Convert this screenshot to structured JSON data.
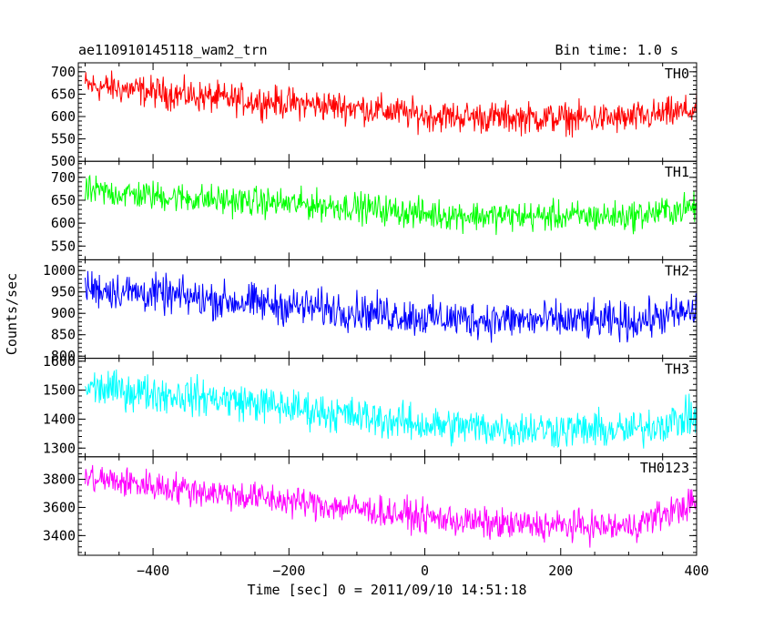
{
  "chart_data": {
    "type": "line",
    "title": "ae110910145118_wam2_trn",
    "bin_time_label": "Bin time: 1.0 s",
    "xlabel": "Time [sec] 0 = 2011/09/10 14:51:18",
    "ylabel": "Counts/sec",
    "xlim": [
      -510,
      400
    ],
    "xticks": [
      -400,
      -200,
      0,
      200,
      400
    ],
    "xtick_labels": [
      "−400",
      "−200",
      "0",
      "200",
      "400"
    ],
    "bin_seconds": 1.0,
    "x_start": -500,
    "x_end": 400,
    "grid": false,
    "legend": "panel labels at top-right of each panel",
    "series": [
      {
        "name": "TH0",
        "color": "#ff0000",
        "ylim": [
          500,
          720
        ],
        "yticks": [
          550,
          600,
          650,
          700
        ],
        "ytick_labels": [
          "550",
          "600",
          "650",
          "700"
        ],
        "extra_ytick_labels": [
          "500"
        ],
        "trend_x": [
          -500,
          -300,
          -100,
          0,
          100,
          300,
          400
        ],
        "trend_y": [
          670,
          640,
          620,
          602,
          598,
          595,
          615
        ],
        "noise_amplitude": 30
      },
      {
        "name": "TH1",
        "color": "#00ff00",
        "ylim": [
          520,
          735
        ],
        "yticks": [
          550,
          600,
          650,
          700
        ],
        "ytick_labels": [
          "550",
          "600",
          "650",
          "700"
        ],
        "trend_x": [
          -500,
          -300,
          -100,
          0,
          100,
          300,
          400
        ],
        "trend_y": [
          670,
          650,
          635,
          620,
          615,
          615,
          635
        ],
        "noise_amplitude": 28
      },
      {
        "name": "TH2",
        "color": "#0000ff",
        "ylim": [
          795,
          1025
        ],
        "yticks": [
          800,
          850,
          900,
          950,
          1000
        ],
        "ytick_labels": [
          "800",
          "850",
          "900",
          "950",
          "1000"
        ],
        "trend_x": [
          -500,
          -300,
          -100,
          0,
          100,
          300,
          400
        ],
        "trend_y": [
          960,
          930,
          905,
          890,
          885,
          880,
          905
        ],
        "noise_amplitude": 38
      },
      {
        "name": "TH3",
        "color": "#00ffff",
        "ylim": [
          1270,
          1610
        ],
        "yticks": [
          1300,
          1400,
          1500,
          1600
        ],
        "ytick_labels": [
          "1300",
          "1400",
          "1500",
          "1600"
        ],
        "trend_x": [
          -500,
          -300,
          -100,
          0,
          100,
          300,
          400
        ],
        "trend_y": [
          1510,
          1470,
          1410,
          1380,
          1370,
          1360,
          1410
        ],
        "noise_amplitude": 55
      },
      {
        "name": "TH0123",
        "color": "#ff00ff",
        "ylim": [
          3260,
          3960
        ],
        "yticks": [
          3400,
          3600,
          3800
        ],
        "ytick_labels": [
          "3400",
          "3600",
          "3800"
        ],
        "trend_x": [
          -500,
          -300,
          -100,
          0,
          100,
          300,
          400
        ],
        "trend_y": [
          3810,
          3700,
          3590,
          3530,
          3480,
          3460,
          3640
        ],
        "noise_amplitude": 95
      }
    ]
  }
}
